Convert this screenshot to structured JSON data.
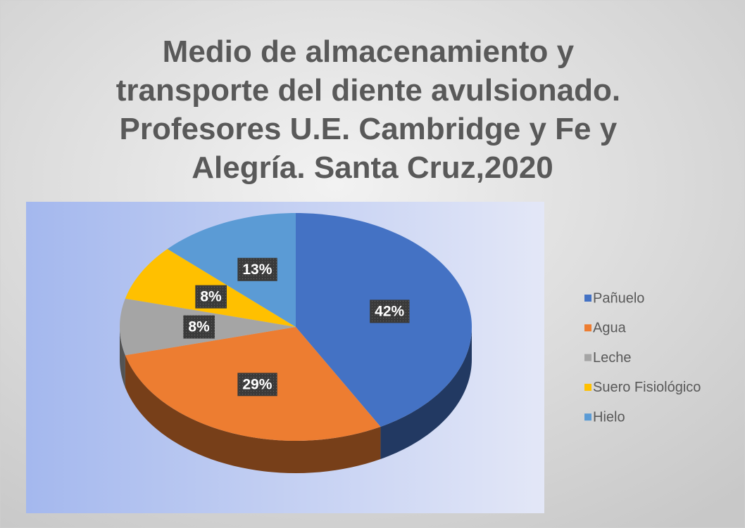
{
  "chart_data": {
    "type": "pie",
    "title": [
      "Medio de almacenamiento y",
      "transporte del diente avulsionado.",
      "Profesores U.E. Cambridge y Fe y",
      "Alegría. Santa Cruz,2020"
    ],
    "categories": [
      "Pañuelo",
      "Agua",
      "Leche",
      "Suero Fisiológico",
      "Hielo"
    ],
    "values": [
      42,
      29,
      8,
      8,
      13
    ],
    "value_labels": [
      "42%",
      "29%",
      "8%",
      "8%",
      "13%"
    ],
    "colors": [
      "#4472c4",
      "#ed7d31",
      "#a5a5a5",
      "#ffc000",
      "#5b9bd5"
    ],
    "legend": "right"
  }
}
